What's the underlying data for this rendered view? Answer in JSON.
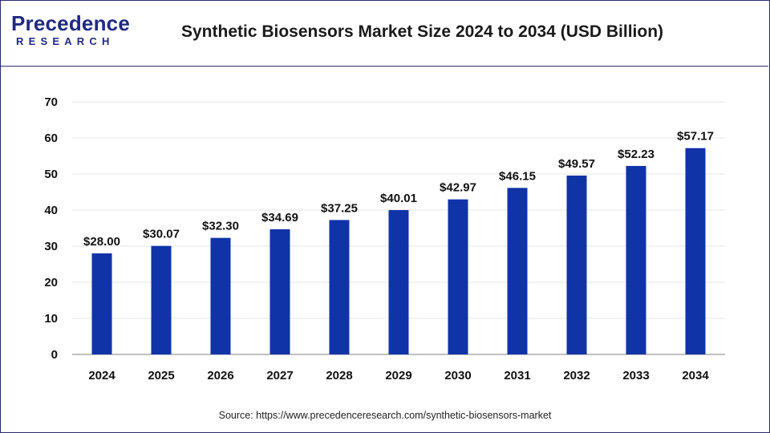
{
  "header": {
    "logo_main": "Precedence",
    "logo_sub": "RESEARCH",
    "title": "Synthetic Biosensors Market Size 2024 to 2034 (USD Billion)"
  },
  "source": {
    "text": "Source: https://www.precedenceresearch.com/synthetic-biosensors-market"
  },
  "colors": {
    "bar": "#1033a8",
    "border": "#2d2d6e",
    "brand": "#1f2a80",
    "gridline": "#e6e6e6"
  },
  "chart_data": {
    "type": "bar",
    "title": "Synthetic Biosensors Market Size 2024 to 2034 (USD Billion)",
    "xlabel": "",
    "ylabel": "",
    "categories": [
      "2024",
      "2025",
      "2026",
      "2027",
      "2028",
      "2029",
      "2030",
      "2031",
      "2032",
      "2033",
      "2034"
    ],
    "values": [
      28.0,
      30.07,
      32.3,
      34.69,
      37.25,
      40.01,
      42.97,
      46.15,
      49.57,
      52.23,
      57.17
    ],
    "data_labels": [
      "$28.00",
      "$30.07",
      "$32.30",
      "$34.69",
      "$37.25",
      "$40.01",
      "$42.97",
      "$46.15",
      "$49.57",
      "$52.23",
      "$57.17"
    ],
    "ylim": [
      0,
      70
    ],
    "yticks": [
      0,
      10,
      20,
      30,
      40,
      50,
      60,
      70
    ],
    "grid": true,
    "legend": "none"
  }
}
